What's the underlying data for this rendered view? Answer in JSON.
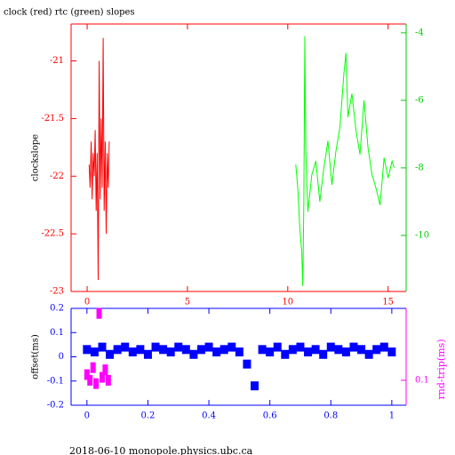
{
  "chart_data": [
    {
      "type": "line",
      "title": "clock (red) rtc (green) slopes",
      "ylabel": "clockslope",
      "xlim": [
        -0.8,
        15.9
      ],
      "xticks": [
        0,
        5,
        10,
        15
      ],
      "ylim": [
        -23,
        -20.68
      ],
      "yticks": [
        -21,
        -21.5,
        -22,
        -22.5,
        -23
      ],
      "y2lim": [
        -11.66,
        -3.74
      ],
      "y2ticks": [
        -4,
        -6,
        -8,
        -10
      ],
      "series": [
        {
          "color": "#ff0000",
          "x": [
            0.1,
            0.15,
            0.2,
            0.25,
            0.3,
            0.35,
            0.4,
            0.45,
            0.5,
            0.55,
            0.6,
            0.65,
            0.7,
            0.75,
            0.8,
            0.85,
            0.9,
            0.95,
            1.0,
            1.05,
            1.1
          ],
          "values": [
            -21.9,
            -22.1,
            -21.7,
            -22.2,
            -21.8,
            -22.0,
            -21.6,
            -22.3,
            -21.8,
            -22.9,
            -21.0,
            -22.2,
            -21.5,
            -22.1,
            -20.8,
            -22.3,
            -21.7,
            -22.5,
            -21.8,
            -22.1,
            -21.7
          ]
        },
        {
          "color": "#00ff00",
          "axis": "y2",
          "x": [
            10.4,
            10.5,
            10.6,
            10.7,
            10.75,
            10.8,
            10.85,
            10.9,
            11.0,
            11.2,
            11.4,
            11.6,
            11.8,
            12.0,
            12.2,
            12.4,
            12.6,
            12.8,
            12.9,
            13.0,
            13.2,
            13.4,
            13.6,
            13.8,
            14.0,
            14.2,
            14.4,
            14.6,
            14.8,
            15.0,
            15.2,
            15.3
          ],
          "values": [
            -7.9,
            -8.6,
            -9.8,
            -10.5,
            -11.5,
            -9.0,
            -4.1,
            -7.5,
            -9.3,
            -8.2,
            -7.8,
            -9.0,
            -8.0,
            -7.2,
            -8.5,
            -7.5,
            -6.8,
            -5.2,
            -4.6,
            -6.5,
            -5.8,
            -6.9,
            -7.6,
            -6.0,
            -7.4,
            -8.2,
            -8.6,
            -9.1,
            -7.7,
            -8.3,
            -7.8,
            -8.0
          ]
        }
      ]
    },
    {
      "type": "scatter",
      "ylabel": "offset(ms)",
      "y2label": "rnd-trip(ms)",
      "xlim": [
        -0.052,
        1.047
      ],
      "xticks": [
        0,
        0.2,
        0.4,
        0.6,
        0.8,
        1
      ],
      "ylim": [
        -0.2,
        0.2
      ],
      "yticks": [
        -0.2,
        -0.1,
        0,
        0.1,
        0.2
      ],
      "y2lim": [
        0.045,
        1
      ],
      "y2ticks": [
        0.1
      ],
      "y2_log": true,
      "series": [
        {
          "color": "#0000ff",
          "x": [
            0,
            0.025,
            0.05,
            0.075,
            0.1,
            0.125,
            0.15,
            0.175,
            0.2,
            0.225,
            0.25,
            0.275,
            0.3,
            0.325,
            0.35,
            0.375,
            0.4,
            0.425,
            0.45,
            0.475,
            0.5,
            0.525,
            0.55,
            0.575,
            0.6,
            0.625,
            0.65,
            0.675,
            0.7,
            0.725,
            0.75,
            0.775,
            0.8,
            0.825,
            0.85,
            0.875,
            0.9,
            0.925,
            0.95,
            0.975,
            1
          ],
          "values": [
            0.03,
            0.02,
            0.04,
            0.01,
            0.03,
            0.04,
            0.02,
            0.03,
            0.01,
            0.04,
            0.03,
            0.02,
            0.04,
            0.03,
            0.01,
            0.03,
            0.04,
            0.02,
            0.03,
            0.04,
            0.02,
            -0.03,
            -0.12,
            0.03,
            0.02,
            0.04,
            0.01,
            0.03,
            0.04,
            0.02,
            0.03,
            0.01,
            0.04,
            0.03,
            0.02,
            0.04,
            0.03,
            0.01,
            0.03,
            0.04,
            0.02
          ]
        },
        {
          "color": "#ff00ff",
          "axis": "y2",
          "x": [
            0,
            0.01,
            0.02,
            0.03,
            0.04,
            0.05,
            0.06,
            0.07
          ],
          "values": [
            0.12,
            0.1,
            0.15,
            0.09,
            0.85,
            0.11,
            0.14,
            0.1
          ]
        }
      ]
    }
  ],
  "footer": "2018-06-10 monopole.physics.ubc.ca"
}
